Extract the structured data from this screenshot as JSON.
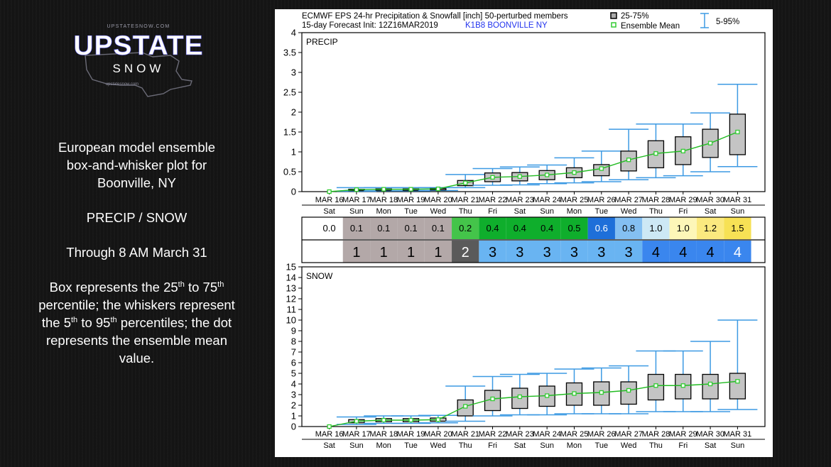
{
  "logo": {
    "url_text": "UPSTATESNOW.COM",
    "name": "UPSTATE",
    "sub": "SNOW",
    "url_text_bottom": "upstatesnow.com"
  },
  "description": {
    "line1": "European model ensemble",
    "line2": "box-and-whisker plot for",
    "line3": "Boonville, NY",
    "line4": "PRECIP / SNOW",
    "line5": "Through 8 AM March 31",
    "box_pre": "Box represents the 25",
    "th1": "th",
    "box_mid": " to 75",
    "th2": "th",
    "box_post": " percentile; the whiskers represent the 5",
    "th3": "th",
    "box_mid2": " to 95",
    "th4": "th",
    "box_end": " percentiles; the dot represents the ensemble mean value."
  },
  "header": {
    "title_line1": "ECMWF EPS 24-hr Precipitation & Snowfall [inch]  50-perturbed members",
    "title_line2": "15-day Forecast Init: 12Z16MAR2019",
    "station": "K1B8  BOONVILLE       NY",
    "legend_box": "25-75%",
    "legend_mean": "Ensemble Mean",
    "legend_whisker": "5-95%"
  },
  "chart_data": [
    {
      "type": "box",
      "panel_label": "PRECIP",
      "categories": [
        "MAR 16",
        "MAR 17",
        "MAR 18",
        "MAR 19",
        "MAR 20",
        "MAR 21",
        "MAR 22",
        "MAR 23",
        "MAR 24",
        "MAR 25",
        "MAR 26",
        "MAR 27",
        "MAR 28",
        "MAR 29",
        "MAR 30",
        "MAR 31"
      ],
      "days": [
        "Sat",
        "Sun",
        "Mon",
        "Tue",
        "Wed",
        "Thu",
        "Fri",
        "Sat",
        "Sun",
        "Mon",
        "Tue",
        "Wed",
        "Thu",
        "Fri",
        "Sat",
        "Sun"
      ],
      "ylim": [
        0,
        4
      ],
      "yticks": [
        "0",
        "0.5",
        "1",
        "1.5",
        "2",
        "2.5",
        "3",
        "3.5",
        "4"
      ],
      "mean": [
        0.0,
        0.05,
        0.06,
        0.06,
        0.07,
        0.22,
        0.36,
        0.38,
        0.42,
        0.48,
        0.58,
        0.8,
        0.96,
        1.02,
        1.22,
        1.5
      ],
      "q25": [
        0.0,
        0.03,
        0.04,
        0.04,
        0.05,
        0.15,
        0.25,
        0.27,
        0.3,
        0.35,
        0.4,
        0.52,
        0.6,
        0.68,
        0.86,
        0.93
      ],
      "q75": [
        0.0,
        0.06,
        0.07,
        0.07,
        0.08,
        0.28,
        0.47,
        0.48,
        0.53,
        0.6,
        0.68,
        1.02,
        1.28,
        1.38,
        1.57,
        1.95
      ],
      "p5": [
        0.0,
        0.01,
        0.02,
        0.02,
        0.03,
        0.1,
        0.16,
        0.17,
        0.2,
        0.22,
        0.25,
        0.3,
        0.35,
        0.4,
        0.5,
        0.63
      ],
      "p95": [
        0.0,
        0.1,
        0.1,
        0.1,
        0.1,
        0.43,
        0.58,
        0.62,
        0.67,
        0.85,
        1.02,
        1.57,
        1.7,
        1.7,
        1.98,
        2.7
      ],
      "table_row1": [
        "0.0",
        "0.1",
        "0.1",
        "0.1",
        "0.1",
        "0.2",
        "0.4",
        "0.4",
        "0.4",
        "0.5",
        "0.6",
        "0.8",
        "1.0",
        "1.0",
        "1.2",
        "1.5"
      ],
      "table_row1_colors": [
        "#ffffff",
        "#b3a8a8",
        "#b3a8a8",
        "#b3a8a8",
        "#b3a8a8",
        "#44c44a",
        "#0fae2c",
        "#0fae2c",
        "#0fae2c",
        "#0fae2c",
        "#1e6fd9",
        "#84bff2",
        "#cde8f5",
        "#fdf6b8",
        "#fbe97f",
        "#f7e155"
      ],
      "table_row1_text_colors": [
        "#000000",
        "#000000",
        "#000000",
        "#000000",
        "#000000",
        "#000000",
        "#000000",
        "#000000",
        "#000000",
        "#000000",
        "#ffffff",
        "#000000",
        "#000000",
        "#000000",
        "#000000",
        "#000000"
      ],
      "table_row2": [
        "",
        "1",
        "1",
        "1",
        "1",
        "2",
        "3",
        "3",
        "3",
        "3",
        "3",
        "3",
        "4",
        "4",
        "4",
        "4"
      ],
      "table_row2_colors": [
        "#ffffff",
        "#b3a8a8",
        "#b3a8a8",
        "#b3a8a8",
        "#b3a8a8",
        "#5a5a5a",
        "#69b4f2",
        "#69b4f2",
        "#69b4f2",
        "#69b4f2",
        "#69b4f2",
        "#69b4f2",
        "#3a86ee",
        "#3a86ee",
        "#3a86ee",
        "#3a86ee"
      ],
      "table_row2_text_colors": [
        "#000000",
        "#000000",
        "#000000",
        "#000000",
        "#000000",
        "#ffffff",
        "#000000",
        "#000000",
        "#000000",
        "#000000",
        "#000000",
        "#000000",
        "#000000",
        "#000000",
        "#000000",
        "#ffffff"
      ]
    },
    {
      "type": "box",
      "panel_label": "SNOW",
      "categories": [
        "MAR 16",
        "MAR 17",
        "MAR 18",
        "MAR 19",
        "MAR 20",
        "MAR 21",
        "MAR 22",
        "MAR 23",
        "MAR 24",
        "MAR 25",
        "MAR 26",
        "MAR 27",
        "MAR 28",
        "MAR 29",
        "MAR 30",
        "MAR 31"
      ],
      "days": [
        "Sat",
        "Sun",
        "Mon",
        "Tue",
        "Wed",
        "Thu",
        "Fri",
        "Sat",
        "Sun",
        "Mon",
        "Tue",
        "Wed",
        "Thu",
        "Fri",
        "Sat",
        "Sun"
      ],
      "ylim": [
        0,
        15
      ],
      "yticks": [
        "0",
        "1",
        "2",
        "3",
        "4",
        "5",
        "6",
        "7",
        "8",
        "9",
        "10",
        "11",
        "12",
        "13",
        "14",
        "15"
      ],
      "mean": [
        0.0,
        0.5,
        0.6,
        0.6,
        0.65,
        1.9,
        2.6,
        2.8,
        2.9,
        3.1,
        3.2,
        3.4,
        3.85,
        3.85,
        4.0,
        4.25
      ],
      "q25": [
        0.0,
        0.35,
        0.45,
        0.45,
        0.5,
        1.0,
        1.5,
        1.7,
        1.9,
        2.0,
        2.0,
        2.1,
        2.5,
        2.6,
        2.6,
        2.6
      ],
      "q75": [
        0.0,
        0.65,
        0.75,
        0.75,
        0.8,
        2.5,
        3.4,
        3.6,
        3.8,
        4.1,
        4.2,
        4.2,
        4.9,
        4.9,
        4.9,
        5.0
      ],
      "p5": [
        0.0,
        0.2,
        0.3,
        0.3,
        0.35,
        0.5,
        1.0,
        1.1,
        1.1,
        1.2,
        1.2,
        1.2,
        1.4,
        1.4,
        1.4,
        1.6
      ],
      "p95": [
        0.0,
        0.9,
        1.0,
        1.0,
        1.05,
        3.8,
        4.7,
        4.9,
        5.0,
        5.4,
        5.5,
        5.7,
        7.1,
        7.1,
        8.0,
        10.0
      ]
    }
  ],
  "colors": {
    "box_fill": "#c4c4c4",
    "whisker": "#3d9ae3",
    "mean_line": "#22bb22",
    "mean_marker": "#33cc33",
    "station_text": "#2233ee"
  }
}
